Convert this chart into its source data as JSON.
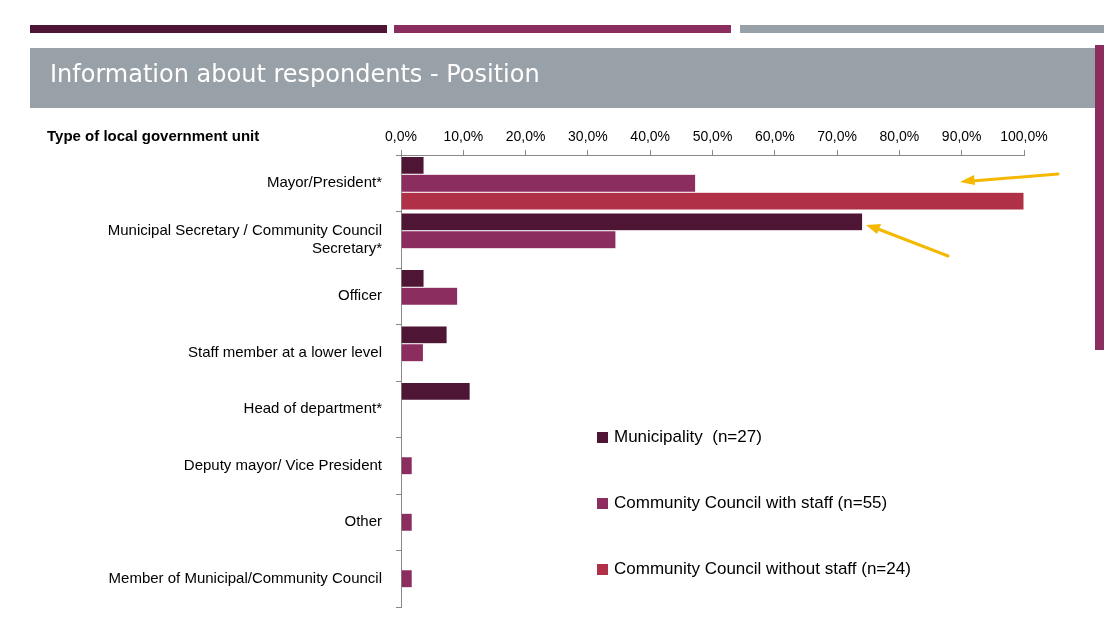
{
  "chart_data": {
    "type": "bar",
    "orientation": "horizontal",
    "title": "Information about respondents - Position",
    "ylabel": "Type of local government unit",
    "categories": [
      "Mayor/President*",
      "Municipal Secretary / Community Council Secretary*",
      "Officer",
      "Staff member at a lower level",
      "Head of department*",
      "Deputy mayor/ Vice President",
      "Other",
      "Member of Municipal/Community Council"
    ],
    "series": [
      {
        "name": "Municipality  (n=27)",
        "color": "#4f1535",
        "values": [
          3.7,
          74.1,
          3.7,
          7.4,
          11.1,
          null,
          null,
          null
        ]
      },
      {
        "name": "Community Council with staff (n=55)",
        "color": "#8c2d5f",
        "values": [
          47.3,
          34.5,
          9.1,
          3.6,
          null,
          1.8,
          1.8,
          1.8
        ]
      },
      {
        "name": "Community Council without staff (n=24)",
        "color": "#b03048",
        "values": [
          100,
          null,
          null,
          null,
          null,
          null,
          null,
          null
        ]
      }
    ],
    "xlim": [
      0,
      100
    ],
    "xticks": [
      {
        "value": 0,
        "label": "0,0%"
      },
      {
        "value": 10,
        "label": "10,0%"
      },
      {
        "value": 20,
        "label": "20,0%"
      },
      {
        "value": 30,
        "label": "30,0%"
      },
      {
        "value": 40,
        "label": "40,0%"
      },
      {
        "value": 50,
        "label": "50,0%"
      },
      {
        "value": 60,
        "label": "60,0%"
      },
      {
        "value": 70,
        "label": "70,0%"
      },
      {
        "value": 80,
        "label": "80,0%"
      },
      {
        "value": 90,
        "label": "90,0%"
      },
      {
        "value": 100,
        "label": "100,0%"
      }
    ],
    "grid": false,
    "legend": "bottom right"
  }
}
